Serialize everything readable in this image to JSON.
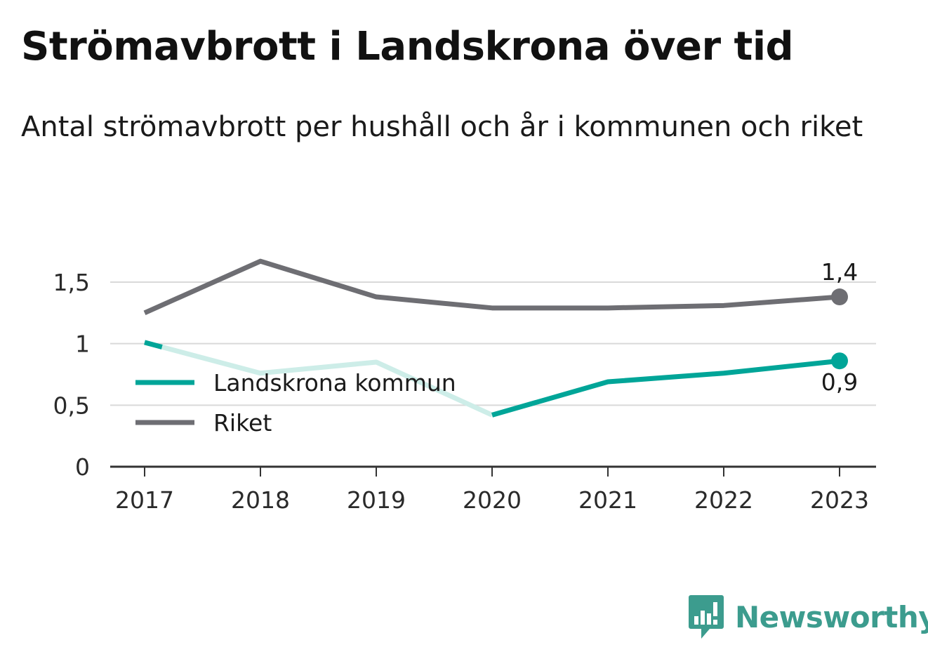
{
  "title": "Strömavbrott i Landskrona över tid",
  "subtitle": "Antal strömavbrott per hushåll och år i kommunen och riket",
  "brand": {
    "name": "Newsworthy"
  },
  "colors": {
    "landskrona": "#00a598",
    "landskrona_light": "#cdede8",
    "riket": "#6e6e73",
    "grid": "#d9d9d9",
    "axis": "#333333",
    "brand": "#3c9c8e"
  },
  "chart_data": {
    "type": "line",
    "x": [
      "2017",
      "2018",
      "2019",
      "2020",
      "2021",
      "2022",
      "2023"
    ],
    "ylim": [
      0,
      1.75
    ],
    "yticks": [
      {
        "value": 0,
        "label": "0"
      },
      {
        "value": 0.5,
        "label": "0,5"
      },
      {
        "value": 1,
        "label": "1"
      },
      {
        "value": 1.5,
        "label": "1,5"
      }
    ],
    "grid": true,
    "legend_position": "left-middle",
    "series": [
      {
        "name": "Landskrona kommun",
        "values": [
          1.01,
          0.76,
          0.85,
          0.42,
          0.69,
          0.76,
          0.86
        ],
        "end_label": "0,9"
      },
      {
        "name": "Riket",
        "values": [
          1.25,
          1.67,
          1.38,
          1.29,
          1.29,
          1.31,
          1.38
        ],
        "end_label": "1,4"
      }
    ]
  }
}
